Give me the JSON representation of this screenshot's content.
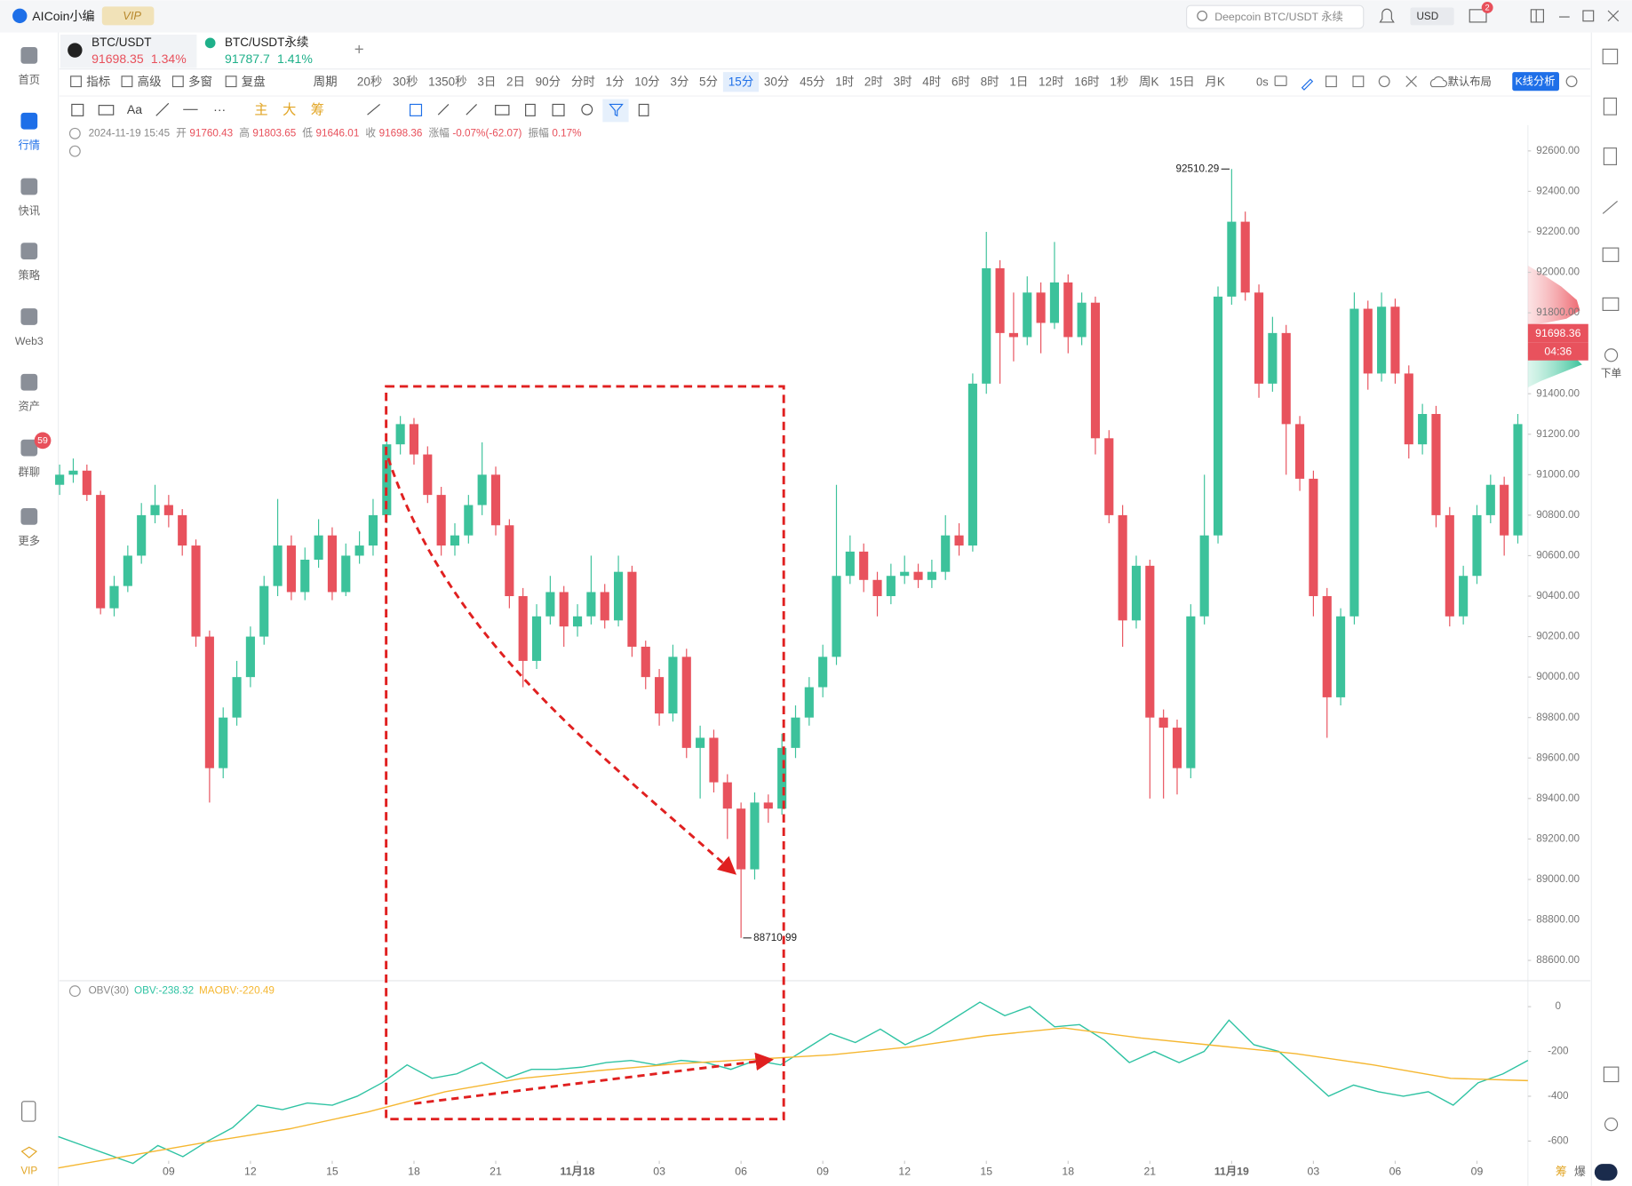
{
  "app": {
    "name": "AICoin小编",
    "badge": "VIP",
    "search": "Deepcoin BTC/USDT 永续",
    "currency": "USD",
    "mail_count": "2"
  },
  "sidebar": {
    "items": [
      "首页",
      "行情",
      "快讯",
      "策略",
      "Web3",
      "资产",
      "群聊",
      "更多"
    ],
    "active": 1,
    "chat_badge": "59",
    "bottom": "VIP"
  },
  "tabs": [
    {
      "symbol": "BTC/USDT",
      "price": "91698.35",
      "change": "1.34%",
      "color": "#e8505b"
    },
    {
      "symbol": "BTC/USDT永续",
      "price": "91787.7",
      "change": "1.41%",
      "color": "#1fb08a"
    }
  ],
  "toolbar": {
    "tools": [
      "指标",
      "高级",
      "多窗",
      "复盘"
    ],
    "period_menu": "周期",
    "periods": [
      "20秒",
      "30秒",
      "1350秒",
      "3日",
      "2日",
      "90分",
      "分时",
      "1分",
      "10分",
      "3分",
      "5分",
      "15分",
      "30分",
      "45分",
      "1时",
      "2时",
      "3时",
      "4时",
      "6时",
      "8时",
      "1日",
      "12时",
      "16时",
      "1秒",
      "周K",
      "15日",
      "月K"
    ],
    "active_period": 11,
    "countdown": "0s",
    "layout": "默认布局",
    "analysis": "K线分析"
  },
  "draw_tools": [
    "主",
    "大",
    "筹"
  ],
  "ohlc_info": {
    "date": "2024-11-19 15:45",
    "fields": [
      {
        "label": "开",
        "value": "91760.43"
      },
      {
        "label": "高",
        "value": "91803.65"
      },
      {
        "label": "低",
        "value": "91646.01"
      },
      {
        "label": "收",
        "value": "91698.36"
      },
      {
        "label": "涨幅",
        "value": "-0.07%(-62.07)"
      },
      {
        "label": "振幅",
        "value": "0.17%"
      }
    ]
  },
  "side_panel": {
    "order": "下单",
    "corner": [
      "筹",
      "爆"
    ]
  },
  "chart_data": [
    {
      "type": "candlestick",
      "up_color": "#3cc29b",
      "down_color": "#e8525d",
      "ohlc": [
        [
          90950,
          91050,
          90900,
          91000
        ],
        [
          91000,
          91080,
          90960,
          91020
        ],
        [
          91020,
          91050,
          90870,
          90900
        ],
        [
          90900,
          90920,
          90310,
          90340
        ],
        [
          90340,
          90500,
          90300,
          90450
        ],
        [
          90450,
          90650,
          90420,
          90600
        ],
        [
          90600,
          90860,
          90560,
          90800
        ],
        [
          90800,
          90950,
          90760,
          90850
        ],
        [
          90850,
          90900,
          90740,
          90800
        ],
        [
          90800,
          90830,
          90600,
          90650
        ],
        [
          90650,
          90680,
          90150,
          90200
        ],
        [
          90200,
          90230,
          89380,
          89550
        ],
        [
          89550,
          89850,
          89500,
          89800
        ],
        [
          89800,
          90080,
          89760,
          90000
        ],
        [
          90000,
          90250,
          89950,
          90200
        ],
        [
          90200,
          90500,
          90160,
          90450
        ],
        [
          90450,
          90880,
          90400,
          90650
        ],
        [
          90650,
          90700,
          90380,
          90420
        ],
        [
          90420,
          90640,
          90380,
          90580
        ],
        [
          90580,
          90780,
          90540,
          90700
        ],
        [
          90700,
          90740,
          90380,
          90420
        ],
        [
          90420,
          90660,
          90400,
          90600
        ],
        [
          90600,
          90720,
          90560,
          90650
        ],
        [
          90650,
          90880,
          90600,
          90800
        ],
        [
          90800,
          91200,
          90760,
          91150
        ],
        [
          91150,
          91290,
          91100,
          91250
        ],
        [
          91250,
          91280,
          91050,
          91100
        ],
        [
          91100,
          91140,
          90860,
          90900
        ],
        [
          90900,
          90940,
          90600,
          90650
        ],
        [
          90650,
          90760,
          90600,
          90700
        ],
        [
          90700,
          90900,
          90660,
          90850
        ],
        [
          90850,
          91160,
          90800,
          91000
        ],
        [
          91000,
          91040,
          90700,
          90750
        ],
        [
          90750,
          90780,
          90340,
          90400
        ],
        [
          90400,
          90440,
          89950,
          90080
        ],
        [
          90080,
          90360,
          90040,
          90300
        ],
        [
          90300,
          90500,
          90260,
          90420
        ],
        [
          90420,
          90450,
          90150,
          90250
        ],
        [
          90250,
          90360,
          90200,
          90300
        ],
        [
          90300,
          90600,
          90260,
          90420
        ],
        [
          90420,
          90460,
          90240,
          90280
        ],
        [
          90280,
          90600,
          90250,
          90520
        ],
        [
          90520,
          90550,
          90100,
          90150
        ],
        [
          90150,
          90180,
          89940,
          90000
        ],
        [
          90000,
          90040,
          89760,
          89820
        ],
        [
          89820,
          90160,
          89780,
          90100
        ],
        [
          90100,
          90140,
          89600,
          89650
        ],
        [
          89650,
          89760,
          89400,
          89700
        ],
        [
          89700,
          89740,
          89430,
          89480
        ],
        [
          89480,
          89520,
          89200,
          89350
        ],
        [
          89350,
          89380,
          88710.99,
          89050
        ],
        [
          89050,
          89430,
          89000,
          89380
        ],
        [
          89380,
          89420,
          89280,
          89350
        ],
        [
          89350,
          89720,
          89320,
          89650
        ],
        [
          89650,
          89860,
          89600,
          89800
        ],
        [
          89800,
          90000,
          89760,
          89950
        ],
        [
          89950,
          90160,
          89900,
          90100
        ],
        [
          90100,
          90950,
          90060,
          90500
        ],
        [
          90500,
          90700,
          90460,
          90620
        ],
        [
          90620,
          90660,
          90420,
          90480
        ],
        [
          90480,
          90520,
          90300,
          90400
        ],
        [
          90400,
          90560,
          90360,
          90500
        ],
        [
          90500,
          90600,
          90460,
          90520
        ],
        [
          90520,
          90560,
          90440,
          90480
        ],
        [
          90480,
          90580,
          90440,
          90520
        ],
        [
          90520,
          90800,
          90480,
          90700
        ],
        [
          90700,
          90760,
          90600,
          90650
        ],
        [
          90650,
          91500,
          90620,
          91450
        ],
        [
          91450,
          92200,
          91400,
          92020
        ],
        [
          92020,
          92060,
          91450,
          91700
        ],
        [
          91700,
          91900,
          91560,
          91680
        ],
        [
          91680,
          91980,
          91640,
          91900
        ],
        [
          91900,
          91950,
          91600,
          91750
        ],
        [
          91750,
          92150,
          91720,
          91950
        ],
        [
          91950,
          91990,
          91600,
          91680
        ],
        [
          91680,
          91900,
          91640,
          91850
        ],
        [
          91850,
          91880,
          91100,
          91180
        ],
        [
          91180,
          91220,
          90760,
          90800
        ],
        [
          90800,
          90850,
          90150,
          90280
        ],
        [
          90280,
          90600,
          90240,
          90550
        ],
        [
          90550,
          90580,
          89400,
          89800
        ],
        [
          89800,
          89840,
          89400,
          89750
        ],
        [
          89750,
          89790,
          89420,
          89550
        ],
        [
          89550,
          90360,
          89500,
          90300
        ],
        [
          90300,
          91000,
          90260,
          90700
        ],
        [
          90700,
          91930,
          90660,
          91880
        ],
        [
          91880,
          92510.29,
          91840,
          92250
        ],
        [
          92250,
          92300,
          91860,
          91900
        ],
        [
          91900,
          91940,
          91380,
          91450
        ],
        [
          91450,
          91780,
          91410,
          91700
        ],
        [
          91700,
          91740,
          91000,
          91250
        ],
        [
          91250,
          91290,
          90920,
          90980
        ],
        [
          90980,
          91020,
          90300,
          90400
        ],
        [
          90400,
          90440,
          89700,
          89900
        ],
        [
          89900,
          90340,
          89860,
          90300
        ],
        [
          90300,
          91900,
          90260,
          91820
        ],
        [
          91820,
          91860,
          91420,
          91500
        ],
        [
          91500,
          91900,
          91460,
          91830
        ],
        [
          91830,
          91870,
          91450,
          91500
        ],
        [
          91500,
          91540,
          91080,
          91150
        ],
        [
          91150,
          91350,
          91100,
          91300
        ],
        [
          91300,
          91340,
          90740,
          90800
        ],
        [
          90800,
          90840,
          90250,
          90300
        ],
        [
          90300,
          90550,
          90260,
          90500
        ],
        [
          90500,
          90850,
          90460,
          90800
        ],
        [
          90800,
          91000,
          90760,
          90950
        ],
        [
          90950,
          90990,
          90600,
          90700
        ],
        [
          90700,
          91300,
          90660,
          91250
        ]
      ],
      "xlim": [
        -0.1,
        107.74
      ],
      "xticks": [
        {
          "value": 8,
          "label": "09"
        },
        {
          "value": 14,
          "label": "12"
        },
        {
          "value": 20,
          "label": "15"
        },
        {
          "value": 26,
          "label": "18"
        },
        {
          "value": 32,
          "label": "21"
        },
        {
          "value": 38,
          "label": "11月18"
        },
        {
          "value": 44,
          "label": "03"
        },
        {
          "value": 50,
          "label": "06"
        },
        {
          "value": 56,
          "label": "09"
        },
        {
          "value": 62,
          "label": "12"
        },
        {
          "value": 68,
          "label": "15"
        },
        {
          "value": 74,
          "label": "18"
        },
        {
          "value": 80,
          "label": "21"
        },
        {
          "value": 86,
          "label": "11月19"
        },
        {
          "value": 92,
          "label": "03"
        },
        {
          "value": 98,
          "label": "06"
        },
        {
          "value": 104,
          "label": "09"
        }
      ],
      "ylim": [
        88510,
        92650
      ],
      "yticks": [
        {
          "value": 92600,
          "label": "92600.00"
        },
        {
          "value": 92400,
          "label": "92400.00"
        },
        {
          "value": 92200,
          "label": "92200.00"
        },
        {
          "value": 92000,
          "label": "92000.00"
        },
        {
          "value": 91800,
          "label": "91800.00"
        },
        {
          "value": 91600,
          "label": "91600.00"
        },
        {
          "value": 91400,
          "label": "91400.00"
        },
        {
          "value": 91200,
          "label": "91200.00"
        },
        {
          "value": 91000,
          "label": "91000.00"
        },
        {
          "value": 90800,
          "label": "90800.00"
        },
        {
          "value": 90600,
          "label": "90600.00"
        },
        {
          "value": 90400,
          "label": "90400.00"
        },
        {
          "value": 90200,
          "label": "90200.00"
        },
        {
          "value": 90000,
          "label": "90000.00"
        },
        {
          "value": 89800,
          "label": "89800.00"
        },
        {
          "value": 89600,
          "label": "89600.00"
        },
        {
          "value": 89400,
          "label": "89400.00"
        },
        {
          "value": 89200,
          "label": "89200.00"
        },
        {
          "value": 89000,
          "label": "89000.00"
        },
        {
          "value": 88800,
          "label": "88800.00"
        },
        {
          "value": 88600,
          "label": "88600.00"
        }
      ],
      "max_marker": 92510.29,
      "min_marker": 88710.99,
      "last_price": 91698.36,
      "countdown": "04:36"
    },
    {
      "type": "line",
      "title": "OBV(30)",
      "ylim": [
        -688,
        102
      ],
      "yticks": [
        0,
        -200,
        -400,
        -600
      ],
      "series": [
        {
          "name": "OBV:-238.32",
          "color": "#2fc3a3",
          "values": [
            -580,
            -620,
            -660,
            -700,
            -620,
            -670,
            -600,
            -540,
            -440,
            -460,
            -430,
            -440,
            -400,
            -340,
            -260,
            -320,
            -300,
            -250,
            -320,
            -280,
            -280,
            -270,
            -250,
            -240,
            -260,
            -240,
            -250,
            -280,
            -240,
            -260,
            -190,
            -120,
            -160,
            -100,
            -170,
            -120,
            -50,
            20,
            -40,
            0,
            -90,
            -80,
            -150,
            -250,
            -200,
            -250,
            -200,
            -60,
            -170,
            -200,
            -300,
            -400,
            -350,
            -380,
            -400,
            -380,
            -440,
            -340,
            -300,
            -240
          ]
        },
        {
          "name": "MAOBV:-220.49",
          "color": "#f5b731",
          "values": [
            -720,
            -660,
            -600,
            -545,
            -470,
            -380,
            -320,
            -285,
            -255,
            -235,
            -215,
            -180,
            -130,
            -95,
            -140,
            -175,
            -210,
            -260,
            -320,
            -330
          ]
        }
      ]
    }
  ]
}
